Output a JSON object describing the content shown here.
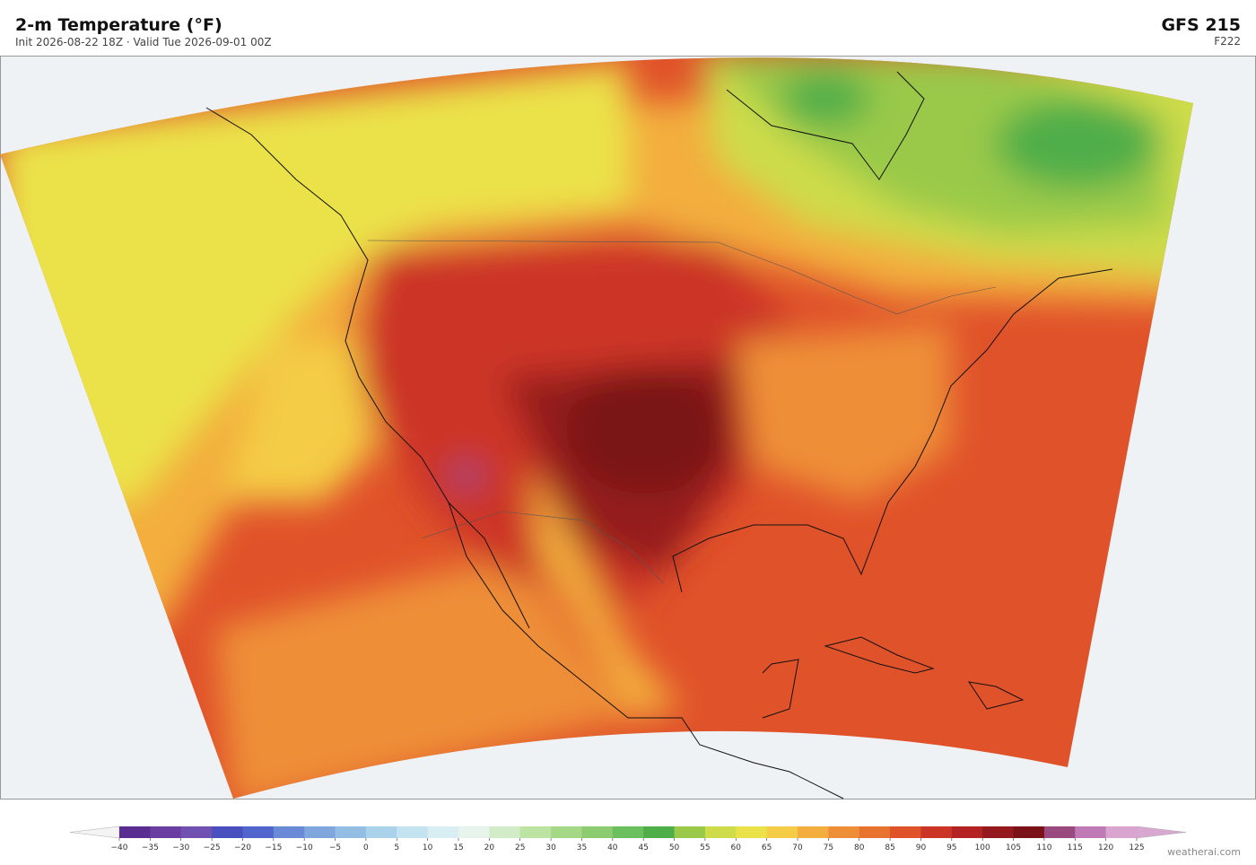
{
  "header": {
    "title": "2-m Temperature  (°F)",
    "subtitle": "Init 2026-08-22 18Z  ·  Valid Tue 2026-09-01 00Z",
    "model": "GFS  215",
    "forecast_hour": "F222"
  },
  "colorbar": {
    "ticks": [
      {
        "value": -40,
        "label": "−40"
      },
      {
        "value": -35,
        "label": "−35"
      },
      {
        "value": -30,
        "label": "−30"
      },
      {
        "value": -25,
        "label": "−25"
      },
      {
        "value": -20,
        "label": "−20"
      },
      {
        "value": -15,
        "label": "−15"
      },
      {
        "value": -10,
        "label": "−10"
      },
      {
        "value": -5,
        "label": "−5"
      },
      0,
      5,
      10,
      15,
      20,
      25,
      30,
      35,
      40,
      45,
      50,
      55,
      60,
      65,
      70,
      75,
      80,
      85,
      90,
      95,
      100,
      105,
      110,
      115,
      120,
      125
    ],
    "colors": [
      "#5a2d91",
      "#6a3ea0",
      "#7050b0",
      "#4a4fc0",
      "#5066cc",
      "#6a8ad8",
      "#7fa6dd",
      "#94bde3",
      "#aad2ea",
      "#c4e3f0",
      "#d9eef3",
      "#e6f4ec",
      "#d3ecc8",
      "#bde3a2",
      "#a5d886",
      "#8ccb70",
      "#6cbf5e",
      "#4fae4a",
      "#9ac94a",
      "#cddc48",
      "#ebe24a",
      "#f4cc45",
      "#f3ae3e",
      "#ee8f37",
      "#e8722f",
      "#e0522a",
      "#cc3426",
      "#b52222",
      "#951a1e",
      "#7a1218",
      "#9b4a80",
      "#c07ab5",
      "#d9a4cf"
    ],
    "under_color": "#f4f4f4",
    "over_color": "#d9a8d0"
  },
  "watermark": "weatherai.com"
}
